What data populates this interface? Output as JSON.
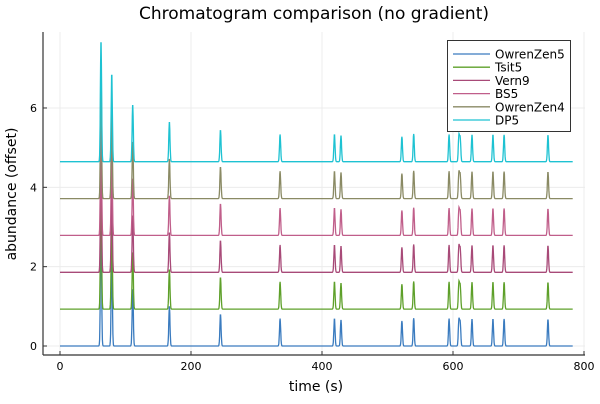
{
  "chart_data": {
    "type": "line",
    "title": "Chromatogram comparison (no gradient)",
    "xlabel": "time (s)",
    "ylabel": "abundance (offset)",
    "xlim": [
      -26,
      802
    ],
    "ylim": [
      -0.23,
      7.9
    ],
    "xticks": [
      0,
      200,
      400,
      600,
      800
    ],
    "yticks": [
      0,
      2,
      4,
      6
    ],
    "grid": true,
    "legend_position": "top-right",
    "x_range": [
      0,
      783
    ],
    "series_offset": 0.929,
    "peaks": [
      {
        "t": 62.6,
        "height": 3.07
      },
      {
        "t": 79,
        "height": 2.23
      },
      {
        "t": 111,
        "height": 1.45
      },
      {
        "t": 167,
        "height": 1.01
      },
      {
        "t": 245,
        "height": 0.8
      },
      {
        "t": 336,
        "height": 0.69
      },
      {
        "t": 419,
        "height": 0.69
      },
      {
        "t": 429,
        "height": 0.66
      },
      {
        "t": 522,
        "height": 0.63
      },
      {
        "t": 540,
        "height": 0.7
      },
      {
        "t": 594,
        "height": 0.69
      },
      {
        "t": 609,
        "height": 0.65
      },
      {
        "t": 611,
        "height": 0.58
      },
      {
        "t": 629,
        "height": 0.68
      },
      {
        "t": 661,
        "height": 0.68
      },
      {
        "t": 678,
        "height": 0.68
      },
      {
        "t": 745,
        "height": 0.67
      }
    ],
    "series": [
      {
        "name": "OwrenZen5",
        "color": "#3a7bbf",
        "baseline": 0
      },
      {
        "name": "Tsit5",
        "color": "#5ea02a",
        "baseline": 0.929
      },
      {
        "name": "Vern9",
        "color": "#a84a78",
        "baseline": 1.858
      },
      {
        "name": "BS5",
        "color": "#c05e8a",
        "baseline": 2.787
      },
      {
        "name": "OwrenZen4",
        "color": "#8a8a64",
        "baseline": 3.716
      },
      {
        "name": "DP5",
        "color": "#1ec2d2",
        "baseline": 4.645
      }
    ]
  }
}
